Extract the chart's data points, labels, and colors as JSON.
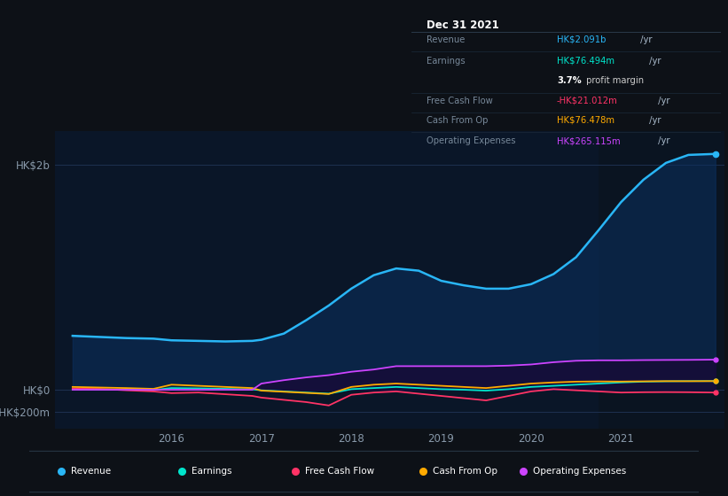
{
  "bg_color": "#0d1117",
  "plot_bg_dark": "#0a1628",
  "plot_bg_light": "#0d1f35",
  "grid_color": "#1e3050",
  "text_color": "#8899aa",
  "ylim": [
    -350000000,
    2300000000
  ],
  "yticks": [
    -200000000,
    0,
    2000000000
  ],
  "ytick_labels": [
    "-HK$200m",
    "HK$0",
    "HK$2b"
  ],
  "xlim": [
    2014.7,
    2022.15
  ],
  "xtick_years": [
    2016,
    2017,
    2018,
    2019,
    2020,
    2021
  ],
  "x_years": [
    2014.9,
    2015.2,
    2015.5,
    2015.8,
    2016.0,
    2016.3,
    2016.6,
    2016.9,
    2017.0,
    2017.25,
    2017.5,
    2017.75,
    2018.0,
    2018.25,
    2018.5,
    2018.75,
    2019.0,
    2019.25,
    2019.5,
    2019.75,
    2020.0,
    2020.25,
    2020.5,
    2020.75,
    2021.0,
    2021.25,
    2021.5,
    2021.75,
    2022.05
  ],
  "revenue": [
    480000000,
    470000000,
    460000000,
    455000000,
    440000000,
    435000000,
    430000000,
    435000000,
    445000000,
    500000000,
    620000000,
    750000000,
    900000000,
    1020000000,
    1080000000,
    1060000000,
    970000000,
    930000000,
    900000000,
    900000000,
    940000000,
    1030000000,
    1180000000,
    1420000000,
    1670000000,
    1870000000,
    2020000000,
    2091000000,
    2100000000
  ],
  "earnings": [
    5000000,
    3000000,
    0,
    -3000000,
    15000000,
    12000000,
    8000000,
    3000000,
    -5000000,
    -15000000,
    -25000000,
    -35000000,
    5000000,
    15000000,
    25000000,
    15000000,
    5000000,
    0,
    -8000000,
    5000000,
    25000000,
    35000000,
    45000000,
    55000000,
    65000000,
    72000000,
    75000000,
    76494000,
    77000000
  ],
  "free_cash_flow": [
    10000000,
    8000000,
    -5000000,
    -15000000,
    -30000000,
    -25000000,
    -40000000,
    -55000000,
    -70000000,
    -90000000,
    -110000000,
    -140000000,
    -45000000,
    -25000000,
    -15000000,
    -35000000,
    -55000000,
    -75000000,
    -95000000,
    -55000000,
    -15000000,
    5000000,
    -5000000,
    -15000000,
    -25000000,
    -22000000,
    -21012000,
    -22000000,
    -25000000
  ],
  "cash_from_op": [
    25000000,
    20000000,
    15000000,
    8000000,
    45000000,
    35000000,
    25000000,
    15000000,
    -8000000,
    -18000000,
    -28000000,
    -38000000,
    25000000,
    45000000,
    55000000,
    45000000,
    35000000,
    25000000,
    15000000,
    35000000,
    55000000,
    65000000,
    72000000,
    74000000,
    73000000,
    75000000,
    76478000,
    76000000,
    77000000
  ],
  "op_expenses": [
    0,
    0,
    0,
    0,
    0,
    0,
    0,
    0,
    55000000,
    85000000,
    110000000,
    130000000,
    160000000,
    180000000,
    210000000,
    210000000,
    210000000,
    210000000,
    210000000,
    215000000,
    225000000,
    245000000,
    258000000,
    262000000,
    262000000,
    264000000,
    265115000,
    266000000,
    268000000
  ],
  "revenue_color": "#29b6f6",
  "earnings_color": "#00e5cc",
  "fcf_color": "#ff3366",
  "cashop_color": "#ffaa00",
  "opex_color": "#cc44ff",
  "revenue_fill_alpha": 0.55,
  "opex_fill_alpha": 0.65,
  "highlight_x_start": 2020.75,
  "highlight_x_end": 2022.15,
  "legend_items": [
    "Revenue",
    "Earnings",
    "Free Cash Flow",
    "Cash From Op",
    "Operating Expenses"
  ],
  "legend_colors": [
    "#29b6f6",
    "#00e5cc",
    "#ff3366",
    "#ffaa00",
    "#cc44ff"
  ],
  "info_box": {
    "title": "Dec 31 2021",
    "rows": [
      {
        "label": "Revenue",
        "value": "HK$2.091b",
        "suffix": " /yr",
        "value_color": "#29b6f6"
      },
      {
        "label": "Earnings",
        "value": "HK$76.494m",
        "suffix": " /yr",
        "value_color": "#00e5cc"
      },
      {
        "label": "",
        "value": "3.7%",
        "suffix": " profit margin",
        "value_color": "#ffffff",
        "is_margin": true
      },
      {
        "label": "Free Cash Flow",
        "value": "-HK$21.012m",
        "suffix": " /yr",
        "value_color": "#ff3366"
      },
      {
        "label": "Cash From Op",
        "value": "HK$76.478m",
        "suffix": " /yr",
        "value_color": "#ffaa00"
      },
      {
        "label": "Operating Expenses",
        "value": "HK$265.115m",
        "suffix": " /yr",
        "value_color": "#cc44ff"
      }
    ]
  }
}
